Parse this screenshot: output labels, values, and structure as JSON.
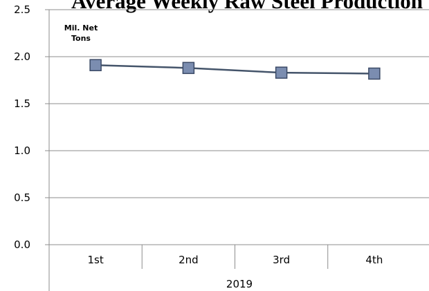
{
  "chart_data": {
    "type": "line",
    "title": "Average Weekly Raw Steel Production",
    "unit_label_lines": [
      "Mil. Net",
      "Tons"
    ],
    "categories": [
      "1st",
      "2nd",
      "3rd",
      "4th"
    ],
    "category_group": "2019",
    "series": [
      {
        "values": [
          1.91,
          1.88,
          1.83,
          1.82
        ]
      }
    ],
    "ylim": [
      0.0,
      2.5
    ],
    "yticks": [
      "0.0",
      "0.5",
      "1.0",
      "1.5",
      "2.0",
      "2.5"
    ],
    "grid": true,
    "legend": "none",
    "colors": {
      "line": "#44546a",
      "marker_fill": "#7b8db0",
      "marker_stroke": "#3b4a66",
      "grid": "#8c8c8c"
    }
  }
}
